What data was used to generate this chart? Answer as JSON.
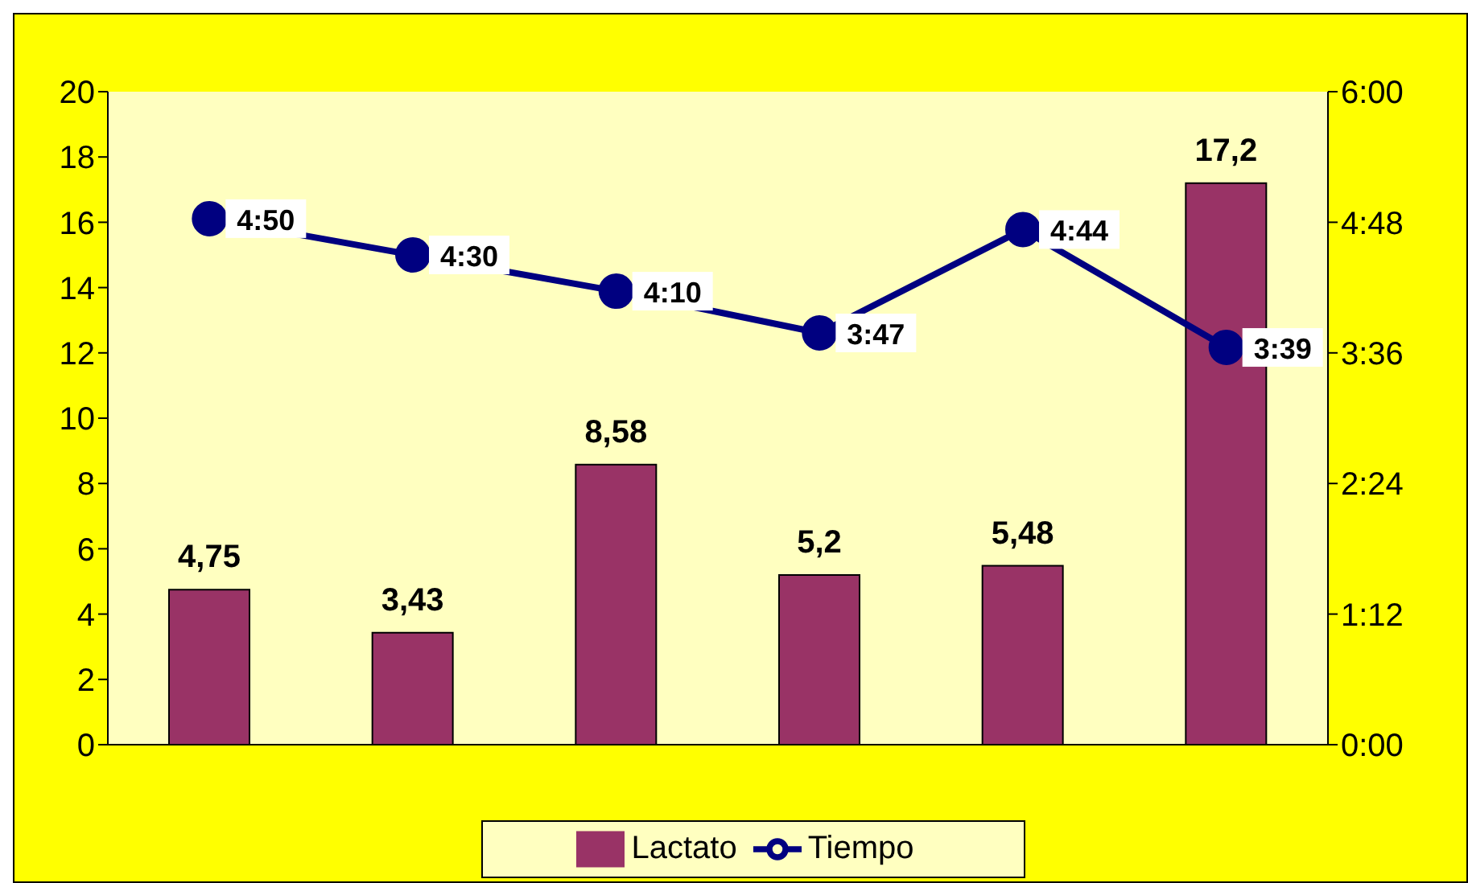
{
  "chart_data": {
    "type": "bar",
    "categories": [
      null,
      null,
      null,
      null,
      null,
      null
    ],
    "series": [
      {
        "name": "Lactato",
        "color": "#993366",
        "values": [
          4.75,
          3.43,
          8.58,
          5.2,
          5.48,
          17.2
        ],
        "value_labels": [
          "4,75",
          "3,43",
          "8,58",
          "5,2",
          "5,48",
          "17,2"
        ]
      },
      {
        "name": "Tiempo",
        "type": "line",
        "axis": "y2",
        "color": "#000080",
        "values": [
          4.8333,
          4.5,
          4.1667,
          3.7833,
          4.7333,
          3.65
        ],
        "value_labels": [
          "4:50",
          "4:30",
          "4:10",
          "3:47",
          "4:44",
          "3:39"
        ]
      }
    ],
    "ylim": [
      0,
      20
    ],
    "yticks": [
      0,
      2,
      4,
      6,
      8,
      10,
      12,
      14,
      16,
      18,
      20
    ],
    "y2lim": [
      0,
      6
    ],
    "y2ticks": [
      {
        "value": 0,
        "label": "0:00"
      },
      {
        "value": 1.2,
        "label": "1:12"
      },
      {
        "value": 2.4,
        "label": "2:24"
      },
      {
        "value": 3.6,
        "label": "3:36"
      },
      {
        "value": 4.8,
        "label": "4:48"
      },
      {
        "value": 6,
        "label": "6:00"
      }
    ],
    "grid": false,
    "legend": "bottom",
    "marker": "circle",
    "line_style": "solid"
  }
}
